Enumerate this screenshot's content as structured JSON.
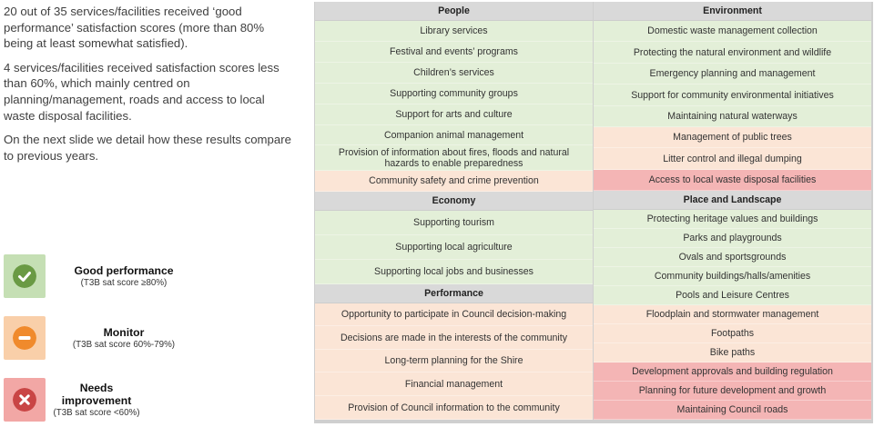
{
  "intro": {
    "p1": "20 out of 35 services/facilities received ‘good performance’ satisfaction scores (more than 80% being at least somewhat satisfied).",
    "p2": "4 services/facilities received satisfaction scores less than 60%, which mainly centred on planning/management, roads and access to local waste disposal facilities.",
    "p3": "On the next slide we detail how these results compare to previous years."
  },
  "legend": [
    {
      "label": "Good performance",
      "sub": "(T3B sat score ≥80%)",
      "icon": "check-circle-icon",
      "swatch": "#c5dfb4",
      "icon_color": "#6a9a44"
    },
    {
      "label": "Monitor",
      "sub": "(T3B sat score 60%-79%)",
      "icon": "minus-circle-icon",
      "swatch": "#f9cfa9",
      "icon_color": "#f08a2c"
    },
    {
      "label": "Needs improvement",
      "sub": "(T3B sat score <60%)",
      "icon": "x-circle-icon",
      "swatch": "#f2a7a5",
      "icon_color": "#c94545"
    }
  ],
  "people": {
    "title": "People",
    "items": [
      {
        "label": "Library services",
        "status": "good"
      },
      {
        "label": "Festival and events’ programs",
        "status": "good"
      },
      {
        "label": "Children’s services",
        "status": "good"
      },
      {
        "label": "Supporting community groups",
        "status": "good"
      },
      {
        "label": "Support for arts and culture",
        "status": "good"
      },
      {
        "label": "Companion animal management",
        "status": "good"
      },
      {
        "label": "Provision of information about fires, floods and natural hazards to enable preparedness",
        "status": "good"
      },
      {
        "label": "Community safety and crime prevention",
        "status": "monitor"
      }
    ]
  },
  "economy": {
    "title": "Economy",
    "items": [
      {
        "label": "Supporting tourism",
        "status": "good"
      },
      {
        "label": "Supporting local agriculture",
        "status": "good"
      },
      {
        "label": "Supporting local jobs and businesses",
        "status": "good"
      }
    ]
  },
  "performance": {
    "title": "Performance",
    "items": [
      {
        "label": "Opportunity to participate in Council decision-making",
        "status": "monitor"
      },
      {
        "label": "Decisions are made in the interests of the community",
        "status": "monitor"
      },
      {
        "label": "Long-term planning for the Shire",
        "status": "monitor"
      },
      {
        "label": "Financial management",
        "status": "monitor"
      },
      {
        "label": "Provision of Council information to the community",
        "status": "monitor"
      }
    ]
  },
  "environment": {
    "title": "Environment",
    "items": [
      {
        "label": "Domestic waste management collection",
        "status": "good"
      },
      {
        "label": "Protecting the natural environment and wildlife",
        "status": "good"
      },
      {
        "label": "Emergency planning and management",
        "status": "good"
      },
      {
        "label": "Support for community environmental initiatives",
        "status": "good"
      },
      {
        "label": "Maintaining natural waterways",
        "status": "good"
      },
      {
        "label": "Management of public trees",
        "status": "monitor"
      },
      {
        "label": "Litter control and illegal dumping",
        "status": "monitor"
      },
      {
        "label": "Access to local waste disposal facilities",
        "status": "needs"
      }
    ]
  },
  "place": {
    "title": "Place and Landscape",
    "items": [
      {
        "label": "Protecting heritage values and buildings",
        "status": "good"
      },
      {
        "label": "Parks and playgrounds",
        "status": "good"
      },
      {
        "label": "Ovals and sportsgrounds",
        "status": "good"
      },
      {
        "label": "Community buildings/halls/amenities",
        "status": "good"
      },
      {
        "label": "Pools and Leisure Centres",
        "status": "good"
      },
      {
        "label": "Floodplain and stormwater management",
        "status": "monitor"
      },
      {
        "label": "Footpaths",
        "status": "monitor"
      },
      {
        "label": "Bike paths",
        "status": "monitor"
      },
      {
        "label": "Development approvals and building regulation",
        "status": "needs"
      },
      {
        "label": "Planning for future development and growth",
        "status": "needs"
      },
      {
        "label": "Maintaining Council roads",
        "status": "needs"
      }
    ]
  }
}
